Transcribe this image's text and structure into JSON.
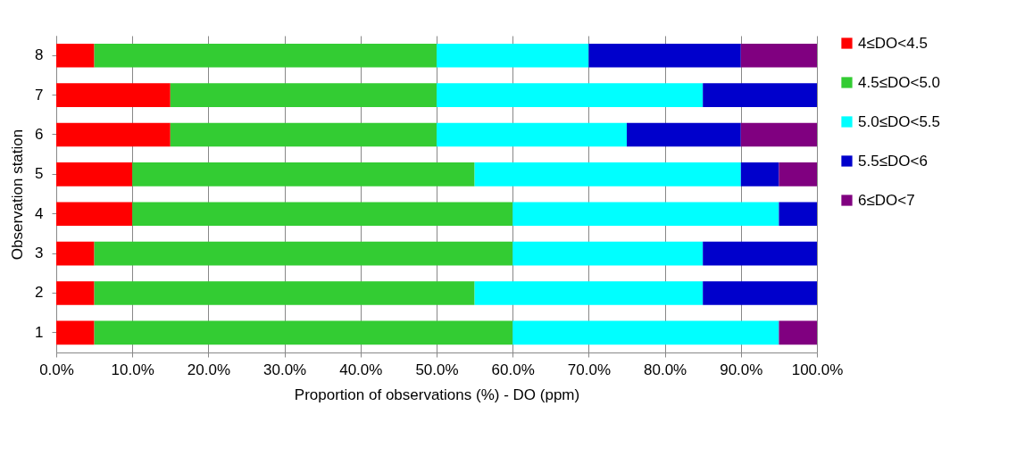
{
  "chart_data": {
    "type": "bar",
    "orientation": "horizontal",
    "stacked": true,
    "xlabel": "Proportion of observations (%) - DO (ppm)",
    "ylabel": "Observation station",
    "categories": [
      "8",
      "7",
      "6",
      "5",
      "4",
      "3",
      "2",
      "1"
    ],
    "series": [
      {
        "name": "4≤DO<4.5",
        "color": "#ff0000",
        "values": [
          5,
          15,
          15,
          10,
          10,
          5,
          5,
          5
        ]
      },
      {
        "name": "4.5≤DO<5.0",
        "color": "#33cc33",
        "values": [
          45,
          35,
          35,
          45,
          50,
          55,
          50,
          55
        ]
      },
      {
        "name": "5.0≤DO<5.5",
        "color": "#00ffff",
        "values": [
          20,
          35,
          25,
          35,
          35,
          25,
          30,
          35
        ]
      },
      {
        "name": "5.5≤DO<6",
        "color": "#0000cc",
        "values": [
          20,
          15,
          15,
          5,
          5,
          15,
          15,
          0
        ]
      },
      {
        "name": "6≤DO<7",
        "color": "#800080",
        "values": [
          10,
          0,
          10,
          5,
          0,
          0,
          0,
          5
        ]
      }
    ],
    "xlim": [
      0,
      100
    ],
    "xticks": [
      {
        "value": 0,
        "label": "0.0%"
      },
      {
        "value": 10,
        "label": "10.0%"
      },
      {
        "value": 20,
        "label": "20.0%"
      },
      {
        "value": 30,
        "label": "30.0%"
      },
      {
        "value": 40,
        "label": "40.0%"
      },
      {
        "value": 50,
        "label": "50.0%"
      },
      {
        "value": 60,
        "label": "60.0%"
      },
      {
        "value": 70,
        "label": "70.0%"
      },
      {
        "value": 80,
        "label": "80.0%"
      },
      {
        "value": 90,
        "label": "90.0%"
      },
      {
        "value": 100,
        "label": "100.0%"
      }
    ],
    "grid": "x",
    "legend": "right"
  }
}
